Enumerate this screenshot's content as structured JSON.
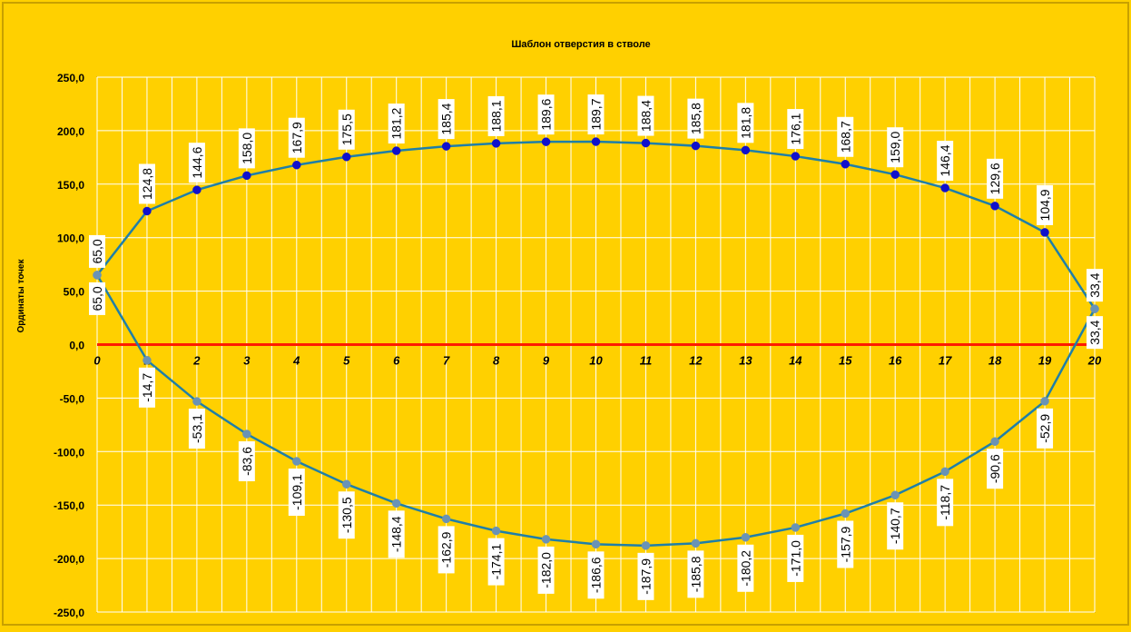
{
  "chart_data": {
    "type": "line",
    "title": "Шаблон отверстия в стволе",
    "xlabel": "",
    "ylabel": "Ординаты точек",
    "x": [
      0,
      1,
      2,
      3,
      4,
      5,
      6,
      7,
      8,
      9,
      10,
      11,
      12,
      13,
      14,
      15,
      16,
      17,
      18,
      19,
      20
    ],
    "xlim": [
      0,
      20
    ],
    "ylim": [
      -250,
      250
    ],
    "y_ticks": [
      "250,0",
      "200,0",
      "150,0",
      "100,0",
      "50,0",
      "0,0",
      "-50,0",
      "-100,0",
      "-150,0",
      "-200,0",
      "-250,0"
    ],
    "x_ticks": [
      "0",
      "1",
      "2",
      "3",
      "4",
      "5",
      "6",
      "7",
      "8",
      "9",
      "10",
      "11",
      "12",
      "13",
      "14",
      "15",
      "16",
      "17",
      "18",
      "19",
      "20"
    ],
    "grid": true,
    "legend": "none",
    "series": [
      {
        "values": [
          65.0,
          124.8,
          144.6,
          158.0,
          167.9,
          175.5,
          181.2,
          185.4,
          188.1,
          189.6,
          189.7,
          188.4,
          185.8,
          181.8,
          176.1,
          168.7,
          159.0,
          146.4,
          129.6,
          104.9,
          33.4
        ],
        "labels": [
          "65,0",
          "124,8",
          "144,6",
          "158,0",
          "167,9",
          "175,5",
          "181,2",
          "185,4",
          "188,1",
          "189,6",
          "189,7",
          "188,4",
          "185,8",
          "181,8",
          "176,1",
          "168,7",
          "159,0",
          "146,4",
          "129,6",
          "104,9",
          "33,4"
        ]
      },
      {
        "values": [
          65.0,
          -14.7,
          -53.1,
          -83.6,
          -109.1,
          -130.5,
          -148.4,
          -162.9,
          -174.1,
          -182.0,
          -186.6,
          -187.9,
          -185.8,
          -180.2,
          -171.0,
          -157.9,
          -140.7,
          -118.7,
          -90.6,
          -52.9,
          33.4
        ],
        "labels": [
          "65,0",
          "-14,7",
          "-53,1",
          "-83,6",
          "-109,1",
          "-130,5",
          "-148,4",
          "-162,9",
          "-174,1",
          "-182,0",
          "-186,6",
          "-187,9",
          "-185,8",
          "-180,2",
          "-171,0",
          "-157,9",
          "-140,7",
          "-118,7",
          "-90,6",
          "-52,9",
          "33,4"
        ]
      }
    ],
    "colors": {
      "background": "#FFD000",
      "line": "#1F7FA8",
      "upper_marker": "#1010CC",
      "lower_marker": "#6A93B5",
      "zero_line": "#FF1A00",
      "grid": "#FFFFFF",
      "label_bg": "#FFFFFF"
    }
  }
}
